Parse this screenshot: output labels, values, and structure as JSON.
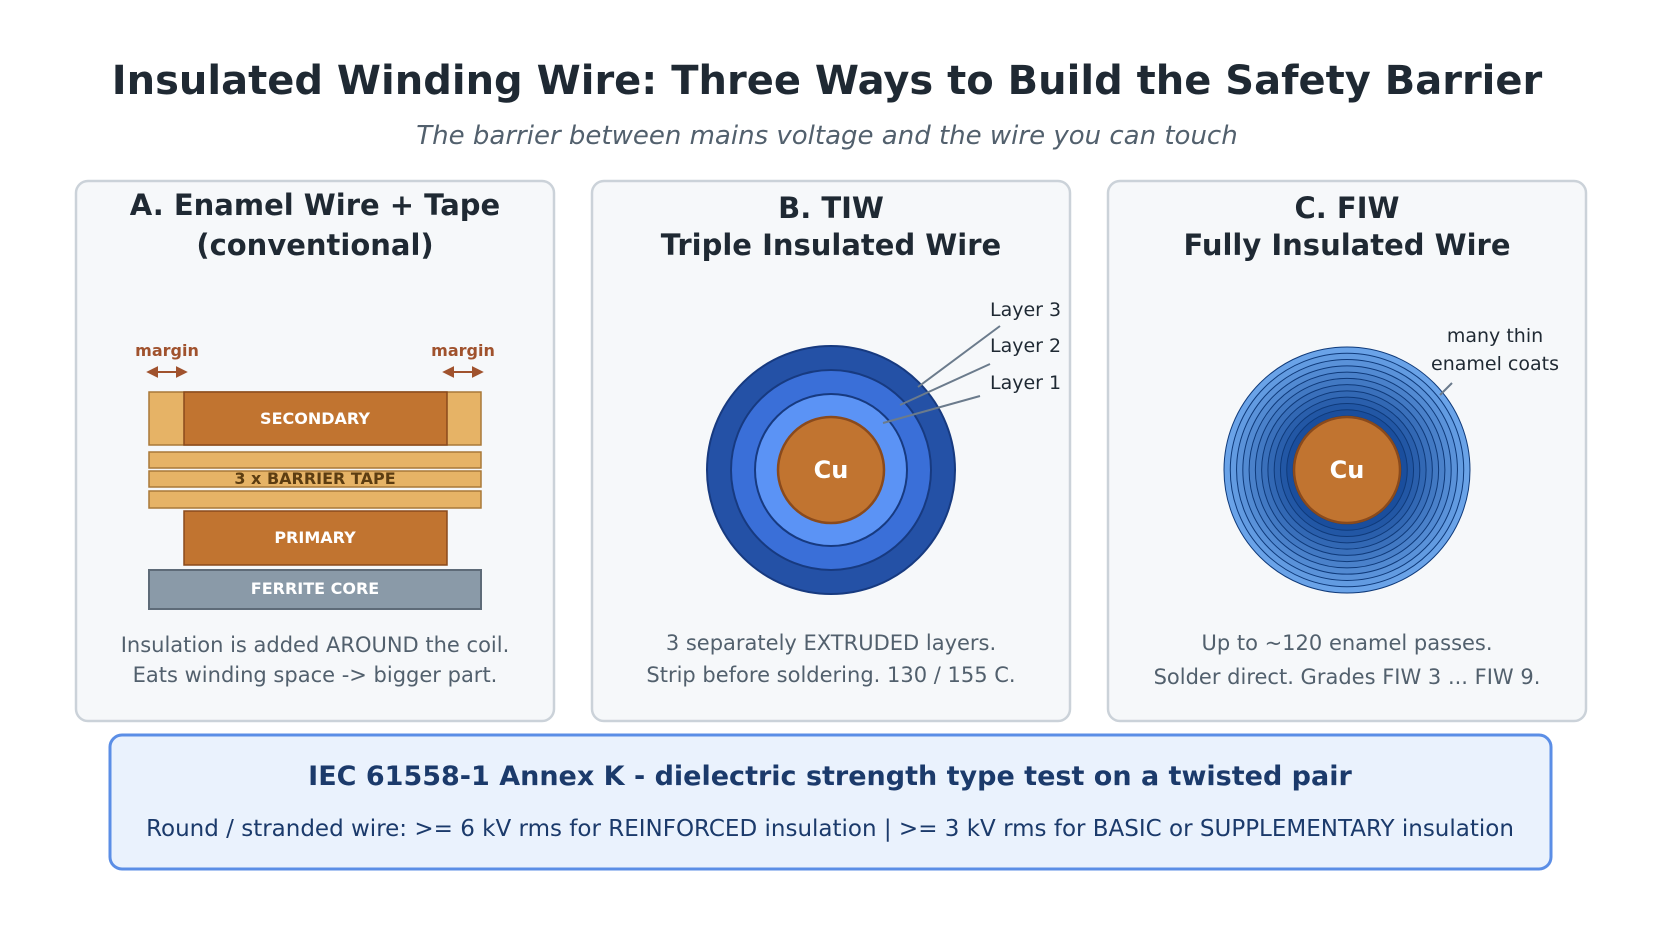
{
  "title": "Insulated Winding Wire: Three Ways to Build the Safety Barrier",
  "subtitle": "The barrier between mains voltage and the wire you can touch",
  "panels": [
    {
      "heading_line1": "A.  Enamel Wire + Tape",
      "heading_line2": "(conventional)",
      "labels": {
        "margin_left": "margin",
        "margin_right": "margin",
        "secondary": "SECONDARY",
        "barrier_tape": "3 x BARRIER TAPE",
        "primary": "PRIMARY",
        "ferrite_core": "FERRITE CORE"
      },
      "desc_line1": "Insulation is added AROUND the coil.",
      "desc_line2": "Eats winding space -> bigger part."
    },
    {
      "heading_line1": "B.  TIW",
      "heading_line2": "Triple Insulated Wire",
      "labels": {
        "layer3": "Layer 3",
        "layer2": "Layer 2",
        "layer1": "Layer 1",
        "core": "Cu"
      },
      "desc_line1": "3 separately EXTRUDED layers.",
      "desc_line2": "Strip before soldering.  130 / 155 C."
    },
    {
      "heading_line1": "C.  FIW",
      "heading_line2": "Fully Insulated Wire",
      "labels": {
        "coats_line1": "many thin",
        "coats_line2": "enamel coats",
        "core": "Cu"
      },
      "desc_line1": "Up to ~120 enamel passes.",
      "desc_line2": "Solder direct.  Grades FIW 3 ... FIW 9."
    }
  ],
  "footer": {
    "heading": "IEC 61558-1 Annex K  -  dielectric strength type test on a twisted pair",
    "detail": "Round / stranded wire:   >= 6 kV rms  for REINFORCED insulation      |      >= 3 kV rms  for BASIC or SUPPLEMENTARY insulation"
  },
  "colors": {
    "title": "#1f2933",
    "subtitle": "#52606d",
    "panel_bg": "#f6f8fa",
    "panel_border": "#cbd2d9",
    "copper": "#c17430",
    "copper_dark": "#8a4a1c",
    "tape": "#e6b366",
    "ferrite": "#8a9aa8",
    "tiw_outer": "#2451a6",
    "tiw_mid": "#3a6fd8",
    "tiw_inner": "#5b93f5",
    "footer_bg": "#eaf2fd",
    "footer_border": "#5b8ee6",
    "footer_text": "#1b3a6b"
  }
}
